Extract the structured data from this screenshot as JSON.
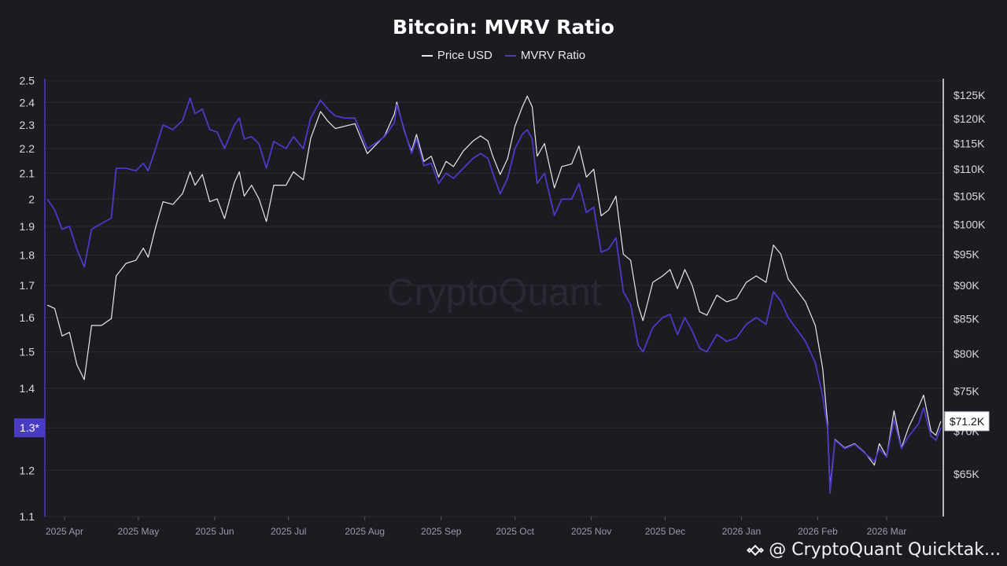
{
  "chart_data": {
    "type": "line",
    "title": "Bitcoin: MVRV Ratio",
    "watermark": "CryptoQuant",
    "footer_text": "@ CryptoQuant Quicktak...",
    "current_labels": {
      "left": "1.3*",
      "right": "$71.2K"
    },
    "legend_position": "top-center",
    "grid": true,
    "x_ticks": [
      "2025 Apr",
      "2025 May",
      "2025 Jun",
      "2025 Jul",
      "2025 Aug",
      "2025 Sep",
      "2025 Oct",
      "2025 Nov",
      "2025 Dec",
      "2026 Jan",
      "2026 Feb",
      "2026 Mar"
    ],
    "left_axis": {
      "scale": "log",
      "ylim": [
        1.1,
        2.5
      ],
      "ticks": [
        1.1,
        1.2,
        1.3,
        1.4,
        1.5,
        1.6,
        1.7,
        1.8,
        1.9,
        2,
        2.1,
        2.2,
        2.3,
        2.4,
        2.5
      ],
      "tick_labels": [
        "1.1",
        "1.2",
        "",
        "1.4",
        "1.5",
        "1.6",
        "1.7",
        "1.8",
        "1.9",
        "2",
        "2.1",
        "2.2",
        "2.3",
        "2.4",
        "2.5"
      ]
    },
    "right_axis": {
      "scale": "log",
      "ticks": [
        65000,
        70000,
        75000,
        80000,
        85000,
        90000,
        95000,
        100000,
        105000,
        110000,
        115000,
        120000,
        125000
      ],
      "tick_labels": [
        "$65K",
        "$70K",
        "$75K",
        "$80K",
        "$85K",
        "$90K",
        "$95K",
        "$100K",
        "$105K",
        "$110K",
        "$115K",
        "$120K",
        "$125K"
      ]
    },
    "series": [
      {
        "name": "Price USD",
        "color": "#e8e8ec",
        "axis": "right",
        "points": [
          [
            "2025-03-25",
            87000
          ],
          [
            "2025-03-28",
            86500
          ],
          [
            "2025-03-31",
            82500
          ],
          [
            "2025-04-03",
            83000
          ],
          [
            "2025-04-06",
            78500
          ],
          [
            "2025-04-09",
            76500
          ],
          [
            "2025-04-12",
            84000
          ],
          [
            "2025-04-16",
            84000
          ],
          [
            "2025-04-20",
            85000
          ],
          [
            "2025-04-22",
            91500
          ],
          [
            "2025-04-26",
            93500
          ],
          [
            "2025-04-30",
            94000
          ],
          [
            "2025-05-03",
            96000
          ],
          [
            "2025-05-05",
            94500
          ],
          [
            "2025-05-08",
            99500
          ],
          [
            "2025-05-11",
            104000
          ],
          [
            "2025-05-15",
            103500
          ],
          [
            "2025-05-19",
            105500
          ],
          [
            "2025-05-22",
            109500
          ],
          [
            "2025-05-24",
            107000
          ],
          [
            "2025-05-27",
            109000
          ],
          [
            "2025-05-30",
            104000
          ],
          [
            "2025-06-02",
            104500
          ],
          [
            "2025-06-05",
            101000
          ],
          [
            "2025-06-09",
            107500
          ],
          [
            "2025-06-11",
            109500
          ],
          [
            "2025-06-13",
            105000
          ],
          [
            "2025-06-16",
            107000
          ],
          [
            "2025-06-19",
            104500
          ],
          [
            "2025-06-22",
            100500
          ],
          [
            "2025-06-25",
            107000
          ],
          [
            "2025-06-30",
            107000
          ],
          [
            "2025-07-03",
            109500
          ],
          [
            "2025-07-07",
            108000
          ],
          [
            "2025-07-10",
            116000
          ],
          [
            "2025-07-14",
            121500
          ],
          [
            "2025-07-17",
            119500
          ],
          [
            "2025-07-20",
            118000
          ],
          [
            "2025-07-24",
            118500
          ],
          [
            "2025-07-28",
            119000
          ],
          [
            "2025-08-02",
            113000
          ],
          [
            "2025-08-05",
            114500
          ],
          [
            "2025-08-09",
            116500
          ],
          [
            "2025-08-13",
            121000
          ],
          [
            "2025-08-14",
            123500
          ],
          [
            "2025-08-17",
            117500
          ],
          [
            "2025-08-20",
            113500
          ],
          [
            "2025-08-22",
            116800
          ],
          [
            "2025-08-25",
            111500
          ],
          [
            "2025-08-28",
            112500
          ],
          [
            "2025-08-31",
            108500
          ],
          [
            "2025-09-03",
            111500
          ],
          [
            "2025-09-06",
            110500
          ],
          [
            "2025-09-10",
            113500
          ],
          [
            "2025-09-14",
            115500
          ],
          [
            "2025-09-17",
            116500
          ],
          [
            "2025-09-20",
            115500
          ],
          [
            "2025-09-22",
            112500
          ],
          [
            "2025-09-25",
            109000
          ],
          [
            "2025-09-28",
            112000
          ],
          [
            "2025-10-01",
            118500
          ],
          [
            "2025-10-04",
            122500
          ],
          [
            "2025-10-06",
            124800
          ],
          [
            "2025-10-08",
            122500
          ],
          [
            "2025-10-10",
            112500
          ],
          [
            "2025-10-13",
            115000
          ],
          [
            "2025-10-17",
            106500
          ],
          [
            "2025-10-20",
            110500
          ],
          [
            "2025-10-24",
            111000
          ],
          [
            "2025-10-27",
            114500
          ],
          [
            "2025-10-30",
            108500
          ],
          [
            "2025-11-02",
            110000
          ],
          [
            "2025-11-05",
            101500
          ],
          [
            "2025-11-08",
            102500
          ],
          [
            "2025-11-11",
            105000
          ],
          [
            "2025-11-14",
            95000
          ],
          [
            "2025-11-17",
            94000
          ],
          [
            "2025-11-20",
            87000
          ],
          [
            "2025-11-22",
            84700
          ],
          [
            "2025-11-26",
            90500
          ],
          [
            "2025-11-30",
            91500
          ],
          [
            "2025-12-03",
            92500
          ],
          [
            "2025-12-06",
            89500
          ],
          [
            "2025-12-09",
            92500
          ],
          [
            "2025-12-12",
            90000
          ],
          [
            "2025-12-15",
            86000
          ],
          [
            "2025-12-18",
            85500
          ],
          [
            "2025-12-22",
            88500
          ],
          [
            "2025-12-26",
            87500
          ],
          [
            "2025-12-30",
            88000
          ],
          [
            "2026-01-03",
            90500
          ],
          [
            "2026-01-07",
            91500
          ],
          [
            "2026-01-11",
            90500
          ],
          [
            "2026-01-14",
            96500
          ],
          [
            "2026-01-17",
            95000
          ],
          [
            "2026-01-20",
            91000
          ],
          [
            "2026-01-23",
            89500
          ],
          [
            "2026-01-27",
            87500
          ],
          [
            "2026-01-31",
            84000
          ],
          [
            "2026-02-03",
            78000
          ],
          [
            "2026-02-05",
            71000
          ],
          [
            "2026-02-06",
            63500
          ],
          [
            "2026-02-08",
            69000
          ],
          [
            "2026-02-12",
            68000
          ],
          [
            "2026-02-16",
            68500
          ],
          [
            "2026-02-20",
            67500
          ],
          [
            "2026-02-24",
            66000
          ],
          [
            "2026-02-26",
            68500
          ],
          [
            "2026-03-01",
            67000
          ],
          [
            "2026-03-04",
            72500
          ],
          [
            "2026-03-07",
            68000
          ],
          [
            "2026-03-10",
            70500
          ],
          [
            "2026-03-14",
            73000
          ],
          [
            "2026-03-16",
            74500
          ],
          [
            "2026-03-19",
            70000
          ],
          [
            "2026-03-21",
            69500
          ],
          [
            "2026-03-23",
            71200
          ]
        ]
      },
      {
        "name": "MVRV Ratio",
        "color": "#4a3bc4",
        "axis": "left",
        "points": [
          [
            "2025-03-25",
            2.0
          ],
          [
            "2025-03-28",
            1.96
          ],
          [
            "2025-03-31",
            1.89
          ],
          [
            "2025-04-03",
            1.9
          ],
          [
            "2025-04-06",
            1.82
          ],
          [
            "2025-04-09",
            1.76
          ],
          [
            "2025-04-12",
            1.89
          ],
          [
            "2025-04-16",
            1.91
          ],
          [
            "2025-04-20",
            1.93
          ],
          [
            "2025-04-22",
            2.12
          ],
          [
            "2025-04-26",
            2.12
          ],
          [
            "2025-04-30",
            2.11
          ],
          [
            "2025-05-03",
            2.14
          ],
          [
            "2025-05-05",
            2.11
          ],
          [
            "2025-05-08",
            2.2
          ],
          [
            "2025-05-11",
            2.3
          ],
          [
            "2025-05-15",
            2.28
          ],
          [
            "2025-05-19",
            2.32
          ],
          [
            "2025-05-22",
            2.42
          ],
          [
            "2025-05-24",
            2.35
          ],
          [
            "2025-05-27",
            2.37
          ],
          [
            "2025-05-30",
            2.28
          ],
          [
            "2025-06-02",
            2.27
          ],
          [
            "2025-06-05",
            2.2
          ],
          [
            "2025-06-09",
            2.3
          ],
          [
            "2025-06-11",
            2.33
          ],
          [
            "2025-06-13",
            2.24
          ],
          [
            "2025-06-16",
            2.25
          ],
          [
            "2025-06-19",
            2.22
          ],
          [
            "2025-06-22",
            2.12
          ],
          [
            "2025-06-25",
            2.23
          ],
          [
            "2025-06-30",
            2.2
          ],
          [
            "2025-07-03",
            2.25
          ],
          [
            "2025-07-07",
            2.2
          ],
          [
            "2025-07-10",
            2.33
          ],
          [
            "2025-07-14",
            2.41
          ],
          [
            "2025-07-17",
            2.37
          ],
          [
            "2025-07-20",
            2.34
          ],
          [
            "2025-07-24",
            2.33
          ],
          [
            "2025-07-28",
            2.33
          ],
          [
            "2025-08-02",
            2.2
          ],
          [
            "2025-08-05",
            2.22
          ],
          [
            "2025-08-09",
            2.25
          ],
          [
            "2025-08-13",
            2.31
          ],
          [
            "2025-08-14",
            2.39
          ],
          [
            "2025-08-17",
            2.28
          ],
          [
            "2025-08-20",
            2.18
          ],
          [
            "2025-08-22",
            2.24
          ],
          [
            "2025-08-25",
            2.13
          ],
          [
            "2025-08-28",
            2.14
          ],
          [
            "2025-08-31",
            2.06
          ],
          [
            "2025-09-03",
            2.1
          ],
          [
            "2025-09-06",
            2.08
          ],
          [
            "2025-09-10",
            2.12
          ],
          [
            "2025-09-14",
            2.16
          ],
          [
            "2025-09-17",
            2.18
          ],
          [
            "2025-09-20",
            2.16
          ],
          [
            "2025-09-22",
            2.1
          ],
          [
            "2025-09-25",
            2.02
          ],
          [
            "2025-09-28",
            2.08
          ],
          [
            "2025-10-01",
            2.2
          ],
          [
            "2025-10-04",
            2.26
          ],
          [
            "2025-10-06",
            2.28
          ],
          [
            "2025-10-08",
            2.24
          ],
          [
            "2025-10-10",
            2.06
          ],
          [
            "2025-10-13",
            2.1
          ],
          [
            "2025-10-17",
            1.94
          ],
          [
            "2025-10-20",
            2.0
          ],
          [
            "2025-10-24",
            2.0
          ],
          [
            "2025-10-27",
            2.06
          ],
          [
            "2025-10-30",
            1.95
          ],
          [
            "2025-11-02",
            1.97
          ],
          [
            "2025-11-05",
            1.81
          ],
          [
            "2025-11-08",
            1.82
          ],
          [
            "2025-11-11",
            1.86
          ],
          [
            "2025-11-14",
            1.68
          ],
          [
            "2025-11-17",
            1.64
          ],
          [
            "2025-11-20",
            1.52
          ],
          [
            "2025-11-22",
            1.5
          ],
          [
            "2025-11-26",
            1.57
          ],
          [
            "2025-11-30",
            1.6
          ],
          [
            "2025-12-03",
            1.61
          ],
          [
            "2025-12-06",
            1.55
          ],
          [
            "2025-12-09",
            1.6
          ],
          [
            "2025-12-12",
            1.56
          ],
          [
            "2025-12-15",
            1.51
          ],
          [
            "2025-12-18",
            1.5
          ],
          [
            "2025-12-22",
            1.55
          ],
          [
            "2025-12-26",
            1.53
          ],
          [
            "2025-12-30",
            1.54
          ],
          [
            "2026-01-03",
            1.58
          ],
          [
            "2026-01-07",
            1.6
          ],
          [
            "2026-01-11",
            1.58
          ],
          [
            "2026-01-14",
            1.68
          ],
          [
            "2026-01-17",
            1.65
          ],
          [
            "2026-01-20",
            1.6
          ],
          [
            "2026-01-23",
            1.57
          ],
          [
            "2026-01-27",
            1.53
          ],
          [
            "2026-01-31",
            1.47
          ],
          [
            "2026-02-03",
            1.38
          ],
          [
            "2026-02-05",
            1.3
          ],
          [
            "2026-02-06",
            1.15
          ],
          [
            "2026-02-08",
            1.27
          ],
          [
            "2026-02-12",
            1.25
          ],
          [
            "2026-02-16",
            1.26
          ],
          [
            "2026-02-20",
            1.24
          ],
          [
            "2026-02-24",
            1.22
          ],
          [
            "2026-02-26",
            1.25
          ],
          [
            "2026-03-01",
            1.23
          ],
          [
            "2026-03-04",
            1.32
          ],
          [
            "2026-03-07",
            1.25
          ],
          [
            "2026-03-10",
            1.28
          ],
          [
            "2026-03-14",
            1.31
          ],
          [
            "2026-03-16",
            1.35
          ],
          [
            "2026-03-19",
            1.28
          ],
          [
            "2026-03-21",
            1.27
          ],
          [
            "2026-03-23",
            1.3
          ]
        ]
      }
    ]
  }
}
